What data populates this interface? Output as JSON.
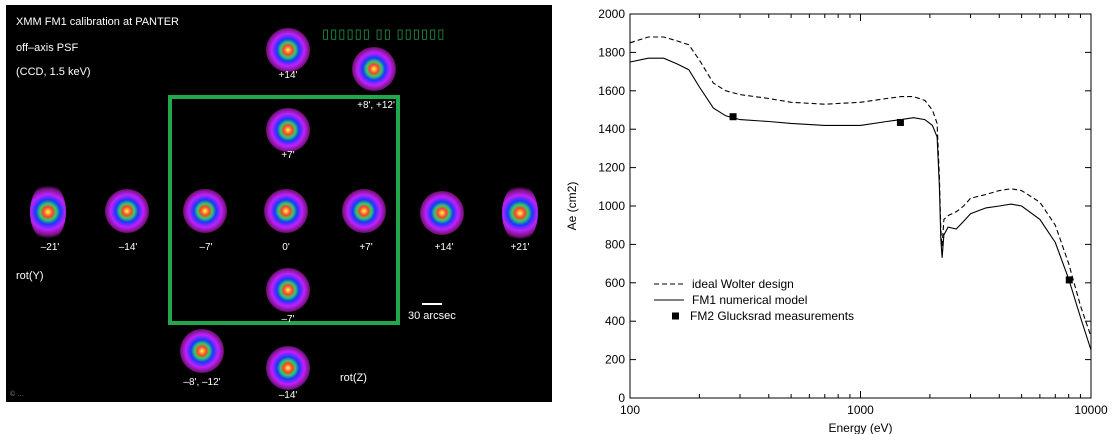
{
  "psf_panel": {
    "title_lines": [
      "XMM FM1 calibration at PANTER",
      "off–axis PSF",
      "(CCD, 1.5 keV)"
    ],
    "caption": "▯▯▯▯▯▯ ▯▯ ▯▯▯▯▯▯",
    "axis_labels": {
      "rot_y": "rot(Y)",
      "rot_z": "rot(Z)"
    },
    "scale_bar": "30 arcsec",
    "footer": "© …",
    "spots": [
      {
        "label": "–21'"
      },
      {
        "label": "–14'"
      },
      {
        "label": "–7'"
      },
      {
        "label": "0'"
      },
      {
        "label": "+7'"
      },
      {
        "label": "+14'"
      },
      {
        "label": "+21'"
      },
      {
        "label": "+14'"
      },
      {
        "label": "+7'"
      },
      {
        "label": "–7'"
      },
      {
        "label": "–14'"
      },
      {
        "label": "+8', +12'"
      },
      {
        "label": "–8', –12'"
      }
    ]
  },
  "chart_data": {
    "type": "line",
    "xlabel": "Energy (eV)",
    "ylabel": "Ae (cm2)",
    "xscale": "log",
    "xlim": [
      100,
      10000
    ],
    "ylim": [
      0,
      2000
    ],
    "xticks": [
      100,
      1000,
      10000
    ],
    "yticks": [
      0,
      200,
      400,
      600,
      800,
      1000,
      1200,
      1400,
      1600,
      1800,
      2000
    ],
    "grid": false,
    "legend_position": "bottom-left",
    "series": [
      {
        "name": "ideal Wolter design",
        "style": "dashed",
        "color": "#000000",
        "x": [
          100,
          120,
          140,
          160,
          180,
          200,
          230,
          260,
          300,
          400,
          500,
          700,
          1000,
          1300,
          1500,
          1700,
          1900,
          2050,
          2150,
          2200,
          2230,
          2260,
          2300,
          2400,
          2600,
          2800,
          3000,
          3500,
          4000,
          4500,
          5000,
          6000,
          7000,
          8000,
          9000,
          10000
        ],
        "y": [
          1850,
          1880,
          1880,
          1860,
          1840,
          1760,
          1640,
          1600,
          1580,
          1560,
          1540,
          1530,
          1540,
          1560,
          1570,
          1570,
          1550,
          1500,
          1430,
          1150,
          880,
          790,
          930,
          950,
          970,
          1000,
          1040,
          1060,
          1080,
          1090,
          1080,
          1020,
          900,
          700,
          480,
          320
        ]
      },
      {
        "name": "FM1 numerical model",
        "style": "solid",
        "color": "#000000",
        "x": [
          100,
          120,
          140,
          160,
          180,
          200,
          230,
          260,
          300,
          400,
          500,
          700,
          1000,
          1300,
          1500,
          1700,
          1900,
          2050,
          2150,
          2200,
          2230,
          2260,
          2300,
          2400,
          2600,
          2800,
          3000,
          3500,
          4000,
          4500,
          5000,
          6000,
          7000,
          8000,
          9000,
          10000
        ],
        "y": [
          1750,
          1770,
          1770,
          1740,
          1710,
          1620,
          1510,
          1470,
          1450,
          1440,
          1430,
          1420,
          1420,
          1440,
          1450,
          1460,
          1450,
          1420,
          1360,
          1100,
          830,
          730,
          850,
          890,
          880,
          920,
          960,
          990,
          1000,
          1010,
          1000,
          930,
          810,
          620,
          420,
          250
        ]
      },
      {
        "name": "FM2 Glucksrad measurements",
        "style": "markers",
        "color": "#000000",
        "x": [
          280,
          1490,
          8050
        ],
        "y": [
          1465,
          1435,
          615
        ]
      }
    ]
  }
}
